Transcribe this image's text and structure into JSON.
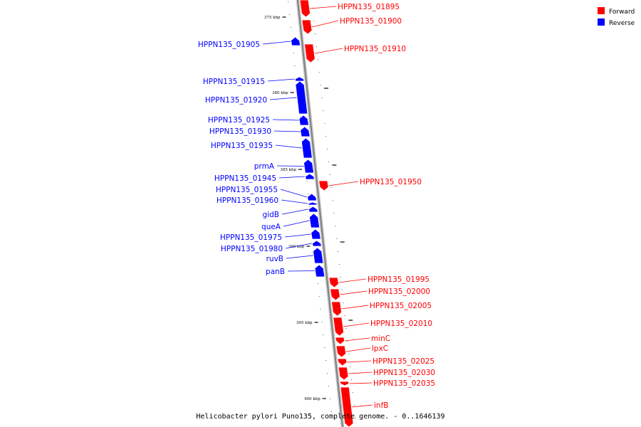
{
  "caption": "Helicobacter pylori Puno135, complete genome. - 0..1646139",
  "legend": [
    {
      "label": "Forward",
      "color": "#ff0000"
    },
    {
      "label": "Reverse",
      "color": "#0000ff"
    }
  ],
  "colors": {
    "forward": "#ff0000",
    "reverse": "#0000ff",
    "backbone": "#808080"
  },
  "ticks": [
    {
      "label": "375 kbp"
    },
    {
      "label": "380 kbp"
    },
    {
      "label": "385 kbp"
    },
    {
      "label": "390 kbp"
    },
    {
      "label": "395 kbp"
    },
    {
      "label": "400 kbp"
    }
  ],
  "genes": [
    {
      "name": "HPPN135_01895",
      "strand": "forward"
    },
    {
      "name": "HPPN135_01900",
      "strand": "forward"
    },
    {
      "name": "HPPN135_01905",
      "strand": "reverse"
    },
    {
      "name": "HPPN135_01910",
      "strand": "forward"
    },
    {
      "name": "HPPN135_01915",
      "strand": "reverse"
    },
    {
      "name": "HPPN135_01920",
      "strand": "reverse"
    },
    {
      "name": "HPPN135_01925",
      "strand": "reverse"
    },
    {
      "name": "HPPN135_01930",
      "strand": "reverse"
    },
    {
      "name": "HPPN135_01935",
      "strand": "reverse"
    },
    {
      "name": "prmA",
      "strand": "reverse"
    },
    {
      "name": "HPPN135_01945",
      "strand": "reverse"
    },
    {
      "name": "HPPN135_01950",
      "strand": "forward"
    },
    {
      "name": "HPPN135_01955",
      "strand": "reverse"
    },
    {
      "name": "HPPN135_01960",
      "strand": "reverse"
    },
    {
      "name": "gidB",
      "strand": "reverse"
    },
    {
      "name": "queA",
      "strand": "reverse"
    },
    {
      "name": "HPPN135_01975",
      "strand": "reverse"
    },
    {
      "name": "HPPN135_01980",
      "strand": "reverse"
    },
    {
      "name": "ruvB",
      "strand": "reverse"
    },
    {
      "name": "panB",
      "strand": "reverse"
    },
    {
      "name": "HPPN135_01995",
      "strand": "forward"
    },
    {
      "name": "HPPN135_02000",
      "strand": "forward"
    },
    {
      "name": "HPPN135_02005",
      "strand": "forward"
    },
    {
      "name": "HPPN135_02010",
      "strand": "forward"
    },
    {
      "name": "minC",
      "strand": "forward"
    },
    {
      "name": "lpxC",
      "strand": "forward"
    },
    {
      "name": "HPPN135_02025",
      "strand": "forward"
    },
    {
      "name": "HPPN135_02030",
      "strand": "forward"
    },
    {
      "name": "HPPN135_02035",
      "strand": "forward"
    },
    {
      "name": "infB",
      "strand": "forward"
    }
  ]
}
